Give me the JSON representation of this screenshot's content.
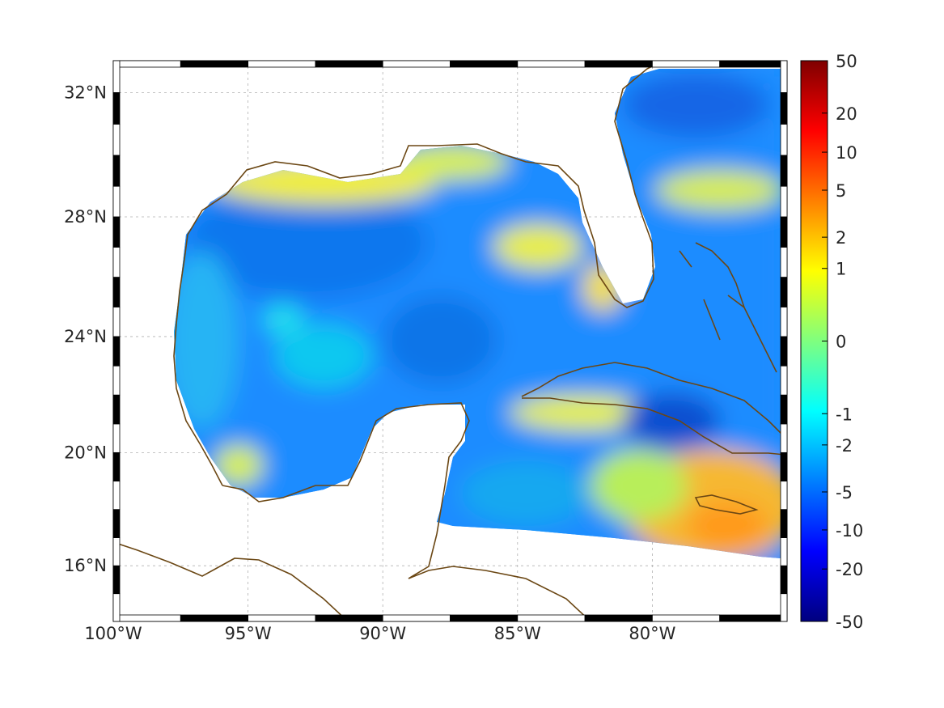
{
  "map": {
    "type": "geographic field map",
    "region": "Gulf of Mexico, Caribbean and western Atlantic",
    "lon_range": [
      -100,
      -75
    ],
    "lat_range": [
      14,
      33
    ],
    "lon_ticks": [
      {
        "value": -100,
        "label": "100°W"
      },
      {
        "value": -95,
        "label": "95°W"
      },
      {
        "value": -90,
        "label": "90°W"
      },
      {
        "value": -85,
        "label": "85°W"
      },
      {
        "value": -80,
        "label": "80°W"
      }
    ],
    "lat_ticks": [
      {
        "value": 32,
        "label": "32°N"
      },
      {
        "value": 28,
        "label": "28°N"
      },
      {
        "value": 24,
        "label": "24°N"
      },
      {
        "value": 20,
        "label": "20°N"
      },
      {
        "value": 16,
        "label": "16°N"
      }
    ],
    "grid": true,
    "coastline_color": "#6b4714",
    "frame_style": "alternating black/white graticule border"
  },
  "colorbar": {
    "colormap": "jet",
    "scale": "nonlinear (symmetric log-like)",
    "position": "right",
    "ticks": [
      {
        "value": 50,
        "label": "50"
      },
      {
        "value": 20,
        "label": "20"
      },
      {
        "value": 10,
        "label": "10"
      },
      {
        "value": 5,
        "label": "5"
      },
      {
        "value": 2,
        "label": "2"
      },
      {
        "value": 1,
        "label": "1"
      },
      {
        "value": 0,
        "label": "0"
      },
      {
        "value": -1,
        "label": "-1"
      },
      {
        "value": -2,
        "label": "-2"
      },
      {
        "value": -5,
        "label": "-5"
      },
      {
        "value": -10,
        "label": "-10"
      },
      {
        "value": -20,
        "label": "-20"
      },
      {
        "value": -50,
        "label": "-50"
      }
    ]
  },
  "field_features": [
    {
      "name": "northern Gulf shelf",
      "approx_value": 1
    },
    {
      "name": "west Florida shelf",
      "approx_value": 1
    },
    {
      "name": "south of Cuba",
      "approx_value": 1
    },
    {
      "name": "Jamaica region",
      "approx_value": 4
    },
    {
      "name": "central Gulf of Mexico",
      "approx_value": -4
    },
    {
      "name": "Cayman trough near Cuba",
      "approx_value": -8
    }
  ]
}
